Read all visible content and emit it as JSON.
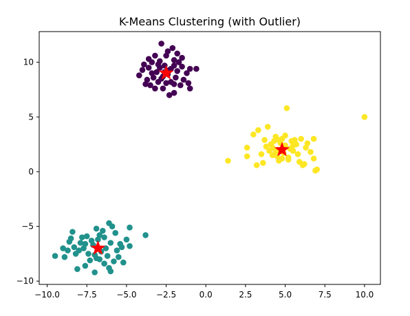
{
  "chart_data": {
    "type": "scatter",
    "title": "K-Means Clustering (with Outlier)",
    "xlabel": "",
    "ylabel": "",
    "xlim": [
      -10.5,
      11.0
    ],
    "ylim": [
      -10.3,
      12.8
    ],
    "xticks": [
      -10.0,
      -7.5,
      -5.0,
      -2.5,
      0.0,
      2.5,
      5.0,
      7.5,
      10.0
    ],
    "xtick_labels": [
      "−10.0",
      "−7.5",
      "−5.0",
      "−2.5",
      "0.0",
      "2.5",
      "5.0",
      "7.5",
      "10.0"
    ],
    "yticks": [
      -10,
      -5,
      0,
      5,
      10
    ],
    "ytick_labels": [
      "−10",
      "−5",
      "0",
      "5",
      "10"
    ],
    "grid": false,
    "series": [
      {
        "color": "#440154",
        "points": [
          [
            -3.9,
            9.8
          ],
          [
            -3.4,
            9.0
          ],
          [
            -3.2,
            10.6
          ],
          [
            -3.0,
            9.8
          ],
          [
            -2.8,
            11.7
          ],
          [
            -2.7,
            8.7
          ],
          [
            -2.5,
            10.6
          ],
          [
            -2.3,
            9.3
          ],
          [
            -2.1,
            11.3
          ],
          [
            -2.0,
            10.2
          ],
          [
            -1.8,
            10.8
          ],
          [
            -1.5,
            9.6
          ],
          [
            -1.2,
            9.0
          ],
          [
            -1.0,
            9.4
          ],
          [
            -0.6,
            9.4
          ],
          [
            -1.1,
            8.1
          ],
          [
            -1.0,
            7.6
          ],
          [
            -1.6,
            7.9
          ],
          [
            -2.0,
            7.2
          ],
          [
            -2.3,
            7.0
          ],
          [
            -2.2,
            8.2
          ],
          [
            -2.7,
            7.6
          ],
          [
            -3.2,
            7.6
          ],
          [
            -3.5,
            7.9
          ],
          [
            -3.8,
            8.0
          ],
          [
            -4.2,
            8.8
          ],
          [
            -4.0,
            9.3
          ],
          [
            -3.6,
            9.5
          ],
          [
            -2.9,
            9.5
          ],
          [
            -2.6,
            9.1
          ],
          [
            -2.4,
            8.9
          ],
          [
            -2.0,
            9.7
          ],
          [
            -1.7,
            10.0
          ],
          [
            -3.4,
            10.0
          ],
          [
            -3.1,
            9.1
          ],
          [
            -2.8,
            8.5
          ],
          [
            -2.5,
            8.1
          ],
          [
            -3.7,
            8.4
          ],
          [
            -1.4,
            8.4
          ],
          [
            -1.9,
            8.6
          ],
          [
            -2.2,
            9.4
          ],
          [
            -2.6,
            9.7
          ],
          [
            -3.0,
            8.2
          ],
          [
            -1.5,
            10.4
          ],
          [
            -2.4,
            11.0
          ],
          [
            -2.0,
            8.0
          ],
          [
            -3.6,
            10.3
          ],
          [
            -1.8,
            9.2
          ],
          [
            -2.9,
            10.1
          ],
          [
            -3.3,
            8.6
          ]
        ]
      },
      {
        "color": "#21918c",
        "points": [
          [
            -9.5,
            -7.7
          ],
          [
            -9.0,
            -7.0
          ],
          [
            -8.9,
            -7.8
          ],
          [
            -8.6,
            -6.4
          ],
          [
            -8.4,
            -5.5
          ],
          [
            -8.3,
            -6.9
          ],
          [
            -8.1,
            -8.9
          ],
          [
            -8.0,
            -7.2
          ],
          [
            -7.8,
            -6.0
          ],
          [
            -7.6,
            -8.6
          ],
          [
            -7.4,
            -7.5
          ],
          [
            -7.2,
            -6.3
          ],
          [
            -7.0,
            -9.2
          ],
          [
            -6.9,
            -7.9
          ],
          [
            -6.7,
            -5.8
          ],
          [
            -6.5,
            -5.4
          ],
          [
            -6.3,
            -7.0
          ],
          [
            -6.1,
            -4.7
          ],
          [
            -6.0,
            -6.5
          ],
          [
            -5.8,
            -8.2
          ],
          [
            -5.6,
            -7.2
          ],
          [
            -5.4,
            -6.6
          ],
          [
            -5.2,
            -8.3
          ],
          [
            -5.0,
            -6.2
          ],
          [
            -4.8,
            -6.8
          ],
          [
            -4.8,
            -5.1
          ],
          [
            -3.8,
            -5.8
          ],
          [
            -6.0,
            -9.1
          ],
          [
            -6.4,
            -8.4
          ],
          [
            -7.1,
            -6.7
          ],
          [
            -7.5,
            -5.9
          ],
          [
            -7.9,
            -6.5
          ],
          [
            -8.2,
            -7.5
          ],
          [
            -6.8,
            -6.2
          ],
          [
            -6.2,
            -7.7
          ],
          [
            -5.7,
            -5.6
          ],
          [
            -5.9,
            -5.0
          ],
          [
            -6.6,
            -7.3
          ],
          [
            -7.3,
            -8.1
          ],
          [
            -7.7,
            -7.0
          ],
          [
            -8.5,
            -6.1
          ],
          [
            -6.9,
            -5.2
          ],
          [
            -5.5,
            -7.8
          ],
          [
            -6.4,
            -6.0
          ],
          [
            -7.0,
            -7.6
          ],
          [
            -8.7,
            -7.2
          ],
          [
            -5.3,
            -6.9
          ],
          [
            -6.1,
            -8.8
          ],
          [
            -7.6,
            -6.6
          ],
          [
            -6.7,
            -8.0
          ]
        ]
      },
      {
        "color": "#fde725",
        "points": [
          [
            1.4,
            1.0
          ],
          [
            2.6,
            2.2
          ],
          [
            2.6,
            1.4
          ],
          [
            3.0,
            3.4
          ],
          [
            3.3,
            3.8
          ],
          [
            3.2,
            0.6
          ],
          [
            3.6,
            0.8
          ],
          [
            3.9,
            4.1
          ],
          [
            4.1,
            2.5
          ],
          [
            4.2,
            1.5
          ],
          [
            4.4,
            3.2
          ],
          [
            4.5,
            2.0
          ],
          [
            4.6,
            1.0
          ],
          [
            4.8,
            3.0
          ],
          [
            5.0,
            2.4
          ],
          [
            5.1,
            5.8
          ],
          [
            5.2,
            1.3
          ],
          [
            5.4,
            2.8
          ],
          [
            5.5,
            1.9
          ],
          [
            5.7,
            2.5
          ],
          [
            5.9,
            0.9
          ],
          [
            6.0,
            3.0
          ],
          [
            6.1,
            0.6
          ],
          [
            6.3,
            2.2
          ],
          [
            6.6,
            1.8
          ],
          [
            6.8,
            3.0
          ],
          [
            6.8,
            1.2
          ],
          [
            6.9,
            0.1
          ],
          [
            7.0,
            0.2
          ],
          [
            10.0,
            5.0
          ],
          [
            4.3,
            2.8
          ],
          [
            4.7,
            2.6
          ],
          [
            4.9,
            1.7
          ],
          [
            5.3,
            2.1
          ],
          [
            4.0,
            1.9
          ],
          [
            3.8,
            2.3
          ],
          [
            4.5,
            1.4
          ],
          [
            5.6,
            2.9
          ],
          [
            5.0,
            3.3
          ],
          [
            4.2,
            2.2
          ],
          [
            3.5,
            1.6
          ],
          [
            5.8,
            1.6
          ],
          [
            6.4,
            2.6
          ],
          [
            4.6,
            2.9
          ],
          [
            5.2,
            1.1
          ],
          [
            3.7,
            2.9
          ],
          [
            4.8,
            1.2
          ],
          [
            6.2,
            0.7
          ],
          [
            5.5,
            2.4
          ],
          [
            4.4,
            1.8
          ]
        ]
      }
    ],
    "centroids": {
      "color": "#ff0000",
      "points": [
        [
          -2.5,
          9.0
        ],
        [
          -6.8,
          -7.0
        ],
        [
          4.8,
          2.0
        ]
      ]
    }
  }
}
